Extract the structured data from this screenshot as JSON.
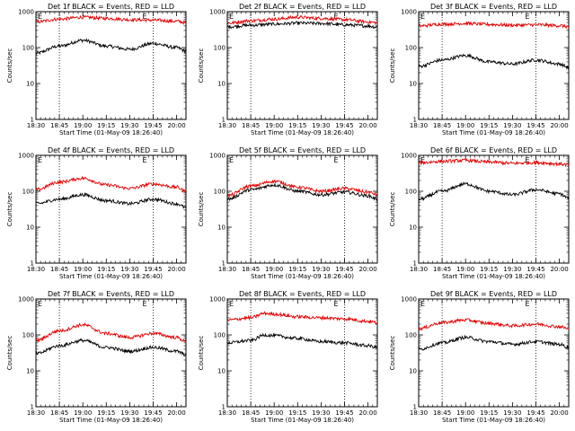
{
  "chart_data": [
    {
      "type": "line",
      "title": "Det 1f BLACK = Events, RED = LLD",
      "ylabel": "Counts/sec",
      "xlabel": "Start Time (01-May-09 18:26:40)",
      "xticks": [
        "18:30",
        "18:45",
        "19:00",
        "19:15",
        "19:30",
        "19:45",
        "20:00"
      ],
      "yticks": [
        "1",
        "10",
        "100",
        "1000"
      ],
      "ylim": [
        1,
        1000
      ],
      "yscale": "log",
      "grid": false,
      "markers": [
        "E",
        "E"
      ],
      "series": [
        {
          "color": "#000000",
          "x": [
            18.5,
            18.75,
            19.0,
            19.25,
            19.5,
            19.75,
            20.0,
            20.1
          ],
          "values": [
            70,
            110,
            160,
            110,
            90,
            130,
            100,
            80
          ]
        },
        {
          "color": "#e00000",
          "x": [
            18.5,
            18.75,
            19.0,
            19.25,
            19.5,
            19.75,
            20.0,
            20.1
          ],
          "values": [
            520,
            620,
            700,
            650,
            600,
            580,
            540,
            500
          ]
        }
      ]
    },
    {
      "type": "line",
      "title": "Det 2f BLACK = Events, RED = LLD",
      "ylabel": "Counts/sec",
      "xlabel": "Start Time (01-May-09 18:26:40)",
      "xticks": [
        "18:30",
        "18:45",
        "19:00",
        "19:15",
        "19:30",
        "19:45",
        "20:00"
      ],
      "yticks": [
        "1",
        "10",
        "100",
        "1000"
      ],
      "ylim": [
        1,
        1000
      ],
      "yscale": "log",
      "grid": false,
      "markers": [
        "E",
        "E"
      ],
      "series": [
        {
          "color": "#000000",
          "x": [
            18.5,
            18.75,
            19.0,
            19.25,
            19.5,
            19.75,
            20.0,
            20.1
          ],
          "values": [
            380,
            420,
            450,
            480,
            470,
            430,
            400,
            370
          ]
        },
        {
          "color": "#e00000",
          "x": [
            18.5,
            18.75,
            19.0,
            19.25,
            19.5,
            19.75,
            20.0,
            20.1
          ],
          "values": [
            480,
            560,
            620,
            700,
            650,
            600,
            520,
            490
          ]
        }
      ]
    },
    {
      "type": "line",
      "title": "Det 3f BLACK = Events, RED = LLD",
      "ylabel": "Counts/sec",
      "xlabel": "Start Time (01-May-09 18:26:40)",
      "xticks": [
        "18:30",
        "18:45",
        "19:00",
        "19:15",
        "19:30",
        "19:45",
        "20:00"
      ],
      "yticks": [
        "1",
        "10",
        "100",
        "1000"
      ],
      "ylim": [
        1,
        1000
      ],
      "yscale": "log",
      "grid": false,
      "markers": [
        "E",
        "E"
      ],
      "series": [
        {
          "color": "#000000",
          "x": [
            18.5,
            18.75,
            19.0,
            19.25,
            19.5,
            19.75,
            20.0,
            20.1
          ],
          "values": [
            30,
            45,
            60,
            40,
            35,
            45,
            35,
            28
          ]
        },
        {
          "color": "#e00000",
          "x": [
            18.5,
            18.75,
            19.0,
            19.25,
            19.5,
            19.75,
            20.0,
            20.1
          ],
          "values": [
            400,
            450,
            470,
            440,
            420,
            430,
            410,
            380
          ]
        }
      ]
    },
    {
      "type": "line",
      "title": "Det 4f BLACK = Events, RED = LLD",
      "ylabel": "Counts/sec",
      "xlabel": "Start Time (01-May-09 18:26:40)",
      "xticks": [
        "18:30",
        "18:45",
        "19:00",
        "19:15",
        "19:30",
        "19:45",
        "20:00"
      ],
      "yticks": [
        "1",
        "10",
        "100",
        "1000"
      ],
      "ylim": [
        1,
        1000
      ],
      "yscale": "log",
      "grid": false,
      "markers": [
        "E",
        "E"
      ],
      "series": [
        {
          "color": "#000000",
          "x": [
            18.5,
            18.75,
            19.0,
            19.25,
            19.5,
            19.75,
            20.0,
            20.1
          ],
          "values": [
            45,
            60,
            80,
            55,
            45,
            60,
            45,
            35
          ]
        },
        {
          "color": "#e00000",
          "x": [
            18.5,
            18.75,
            19.0,
            19.25,
            19.5,
            19.75,
            20.0,
            20.1
          ],
          "values": [
            110,
            180,
            230,
            150,
            120,
            160,
            130,
            100
          ]
        }
      ]
    },
    {
      "type": "line",
      "title": "Det 5f BLACK = Events, RED = LLD",
      "ylabel": "Counts/sec",
      "xlabel": "Start Time (01-May-09 18:26:40)",
      "xticks": [
        "18:30",
        "18:45",
        "19:00",
        "19:15",
        "19:30",
        "19:45",
        "20:00"
      ],
      "yticks": [
        "1",
        "10",
        "100",
        "1000"
      ],
      "ylim": [
        1,
        1000
      ],
      "yscale": "log",
      "grid": false,
      "markers": [
        "E",
        "E"
      ],
      "series": [
        {
          "color": "#000000",
          "x": [
            18.5,
            18.75,
            19.0,
            19.25,
            19.5,
            19.75,
            20.0,
            20.1
          ],
          "values": [
            60,
            110,
            150,
            100,
            80,
            95,
            75,
            60
          ]
        },
        {
          "color": "#e00000",
          "x": [
            18.5,
            18.75,
            19.0,
            19.25,
            19.5,
            19.75,
            20.0,
            20.1
          ],
          "values": [
            75,
            140,
            190,
            130,
            100,
            120,
            95,
            80
          ]
        }
      ]
    },
    {
      "type": "line",
      "title": "Det 6f BLACK = Events, RED = LLD",
      "ylabel": "Counts/sec",
      "xlabel": "Start Time (01-May-09 18:26:40)",
      "xticks": [
        "18:30",
        "18:45",
        "19:00",
        "19:15",
        "19:30",
        "19:45",
        "20:00"
      ],
      "yticks": [
        "1",
        "10",
        "100",
        "1000"
      ],
      "ylim": [
        1,
        1000
      ],
      "yscale": "log",
      "grid": false,
      "markers": [
        "E",
        "E"
      ],
      "series": [
        {
          "color": "#000000",
          "x": [
            18.5,
            18.75,
            19.0,
            19.25,
            19.5,
            19.75,
            20.0,
            20.1
          ],
          "values": [
            60,
            100,
            160,
            100,
            80,
            110,
            85,
            65
          ]
        },
        {
          "color": "#e00000",
          "x": [
            18.5,
            18.75,
            19.0,
            19.25,
            19.5,
            19.75,
            20.0,
            20.1
          ],
          "values": [
            620,
            680,
            720,
            650,
            600,
            630,
            580,
            540
          ]
        }
      ]
    },
    {
      "type": "line",
      "title": "Det 7f BLACK = Events, RED = LLD",
      "ylabel": "Counts/sec",
      "xlabel": "Start Time (01-May-09 18:26:40)",
      "xticks": [
        "18:30",
        "18:45",
        "19:00",
        "19:15",
        "19:30",
        "19:45",
        "20:00"
      ],
      "yticks": [
        "1",
        "10",
        "100",
        "1000"
      ],
      "ylim": [
        1,
        1000
      ],
      "yscale": "log",
      "grid": false,
      "markers": [
        "E",
        "E"
      ],
      "series": [
        {
          "color": "#000000",
          "x": [
            18.5,
            18.75,
            19.0,
            19.25,
            19.5,
            19.75,
            20.0,
            20.1
          ],
          "values": [
            30,
            50,
            70,
            45,
            35,
            45,
            35,
            28
          ]
        },
        {
          "color": "#e00000",
          "x": [
            18.5,
            18.75,
            19.0,
            19.25,
            19.5,
            19.75,
            20.0,
            20.1
          ],
          "values": [
            70,
            130,
            190,
            110,
            85,
            110,
            85,
            65
          ]
        }
      ]
    },
    {
      "type": "line",
      "title": "Det 8f BLACK = Events, RED = LLD",
      "ylabel": "Counts/sec",
      "xlabel": "Start Time (01-May-09 18:26:40)",
      "xticks": [
        "18:30",
        "18:45",
        "19:00",
        "19:15",
        "19:30",
        "19:45",
        "20:00"
      ],
      "yticks": [
        "1",
        "10",
        "100",
        "1000"
      ],
      "ylim": [
        1,
        1000
      ],
      "yscale": "log",
      "grid": false,
      "markers": [
        "E",
        "E"
      ],
      "series": [
        {
          "color": "#000000",
          "x": [
            18.5,
            18.75,
            18.9,
            19.0,
            19.25,
            19.5,
            19.75,
            20.0,
            20.1
          ],
          "values": [
            60,
            70,
            100,
            95,
            80,
            65,
            60,
            50,
            45
          ]
        },
        {
          "color": "#e00000",
          "x": [
            18.5,
            18.75,
            18.9,
            19.0,
            19.25,
            19.5,
            19.75,
            20.0,
            20.1
          ],
          "values": [
            260,
            300,
            400,
            380,
            320,
            300,
            280,
            240,
            220
          ]
        }
      ]
    },
    {
      "type": "line",
      "title": "Det 9f BLACK = Events, RED = LLD",
      "ylabel": "Counts/sec",
      "xlabel": "Start Time (01-May-09 18:26:40)",
      "xticks": [
        "18:30",
        "18:45",
        "19:00",
        "19:15",
        "19:30",
        "19:45",
        "20:00"
      ],
      "yticks": [
        "1",
        "10",
        "100",
        "1000"
      ],
      "ylim": [
        1,
        1000
      ],
      "yscale": "log",
      "grid": false,
      "markers": [
        "E",
        "E"
      ],
      "series": [
        {
          "color": "#000000",
          "x": [
            18.5,
            18.75,
            19.0,
            19.25,
            19.5,
            19.75,
            20.0,
            20.1
          ],
          "values": [
            40,
            60,
            85,
            65,
            55,
            65,
            55,
            45
          ]
        },
        {
          "color": "#e00000",
          "x": [
            18.5,
            18.75,
            19.0,
            19.25,
            19.5,
            19.75,
            20.0,
            20.1
          ],
          "values": [
            150,
            220,
            260,
            210,
            180,
            200,
            170,
            150
          ]
        }
      ]
    }
  ]
}
